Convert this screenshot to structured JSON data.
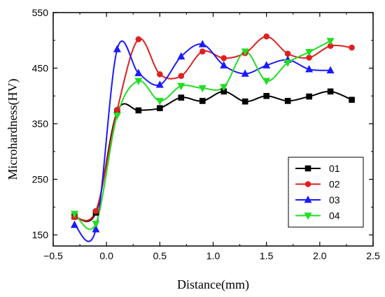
{
  "chart_data": {
    "type": "line",
    "xlabel": "Distance(mm)",
    "ylabel": "Microhardness(HV)",
    "xlim": [
      -0.5,
      2.5
    ],
    "ylim": [
      130,
      550
    ],
    "xticks": [
      -0.5,
      0.0,
      0.5,
      1.0,
      1.5,
      2.0,
      2.5
    ],
    "xtick_labels": [
      "−0.5",
      "0.0",
      "0.5",
      "1.0",
      "1.5",
      "2.0",
      "2.5"
    ],
    "yticks": [
      150,
      250,
      350,
      450,
      550
    ],
    "ytick_labels": [
      "150",
      "250",
      "350",
      "450",
      "550"
    ],
    "legend_position": "lower-right",
    "series": [
      {
        "name": "01",
        "color": "#000000",
        "marker": "square",
        "x": [
          -0.3,
          -0.1,
          0.1,
          0.3,
          0.5,
          0.7,
          0.9,
          1.1,
          1.3,
          1.5,
          1.7,
          1.9,
          2.1,
          2.3
        ],
        "y": [
          183,
          190,
          372,
          374,
          378,
          397,
          391,
          408,
          390,
          400,
          391,
          399,
          408,
          393
        ]
      },
      {
        "name": "02",
        "color": "#e02020",
        "marker": "circle",
        "x": [
          -0.3,
          -0.1,
          0.1,
          0.3,
          0.5,
          0.7,
          0.9,
          1.1,
          1.3,
          1.5,
          1.7,
          1.9,
          2.1,
          2.3
        ],
        "y": [
          182,
          193,
          375,
          502,
          439,
          436,
          480,
          468,
          477,
          507,
          476,
          469,
          490,
          487
        ]
      },
      {
        "name": "03",
        "color": "#1a1aff",
        "marker": "triangle-up",
        "x": [
          -0.3,
          -0.1,
          0.1,
          0.3,
          0.5,
          0.7,
          0.9,
          1.1,
          1.3,
          1.5,
          1.7,
          1.9,
          2.1
        ],
        "y": [
          168,
          160,
          484,
          441,
          420,
          471,
          493,
          455,
          440,
          455,
          465,
          448,
          446
        ]
      },
      {
        "name": "04",
        "color": "#22dd22",
        "marker": "triangle-down",
        "x": [
          -0.3,
          -0.1,
          0.1,
          0.3,
          0.5,
          0.7,
          0.9,
          1.1,
          1.3,
          1.5,
          1.7,
          1.9,
          2.1
        ],
        "y": [
          188,
          170,
          365,
          427,
          391,
          418,
          414,
          416,
          480,
          427,
          460,
          479,
          499
        ]
      }
    ]
  }
}
